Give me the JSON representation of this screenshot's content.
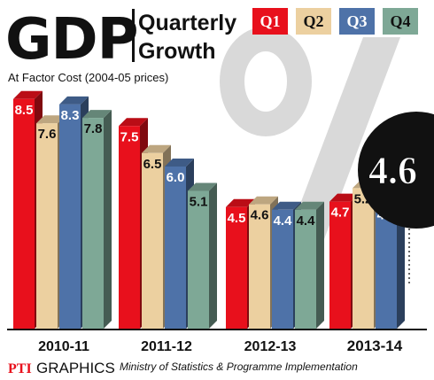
{
  "header": {
    "main_title": "GDP",
    "title_line1": "Quarterly",
    "title_line2": "Growth",
    "subtitle": "At Factor Cost (2004-05 prices)"
  },
  "callout": {
    "value": "4.6"
  },
  "footer": {
    "agency": "PTI",
    "graphics": "GRAPHICS",
    "source": "Ministry of Statistics & Programme Implementation"
  },
  "colors": {
    "Q1": "#e8101c",
    "Q2": "#ecd0a0",
    "Q3": "#4e72a8",
    "Q4": "#7ea896",
    "circle": "#111111",
    "percent_sign": "#d9d9d9"
  },
  "chart_data": {
    "type": "bar",
    "title": "GDP Quarterly Growth",
    "subtitle": "At Factor Cost (2004-05 prices)",
    "categories": [
      "2010-11",
      "2011-12",
      "2012-13",
      "2013-14"
    ],
    "highlight_category": "2013-14",
    "series": [
      {
        "name": "Q1",
        "values": [
          8.5,
          7.5,
          4.5,
          4.7
        ]
      },
      {
        "name": "Q2",
        "values": [
          7.6,
          6.5,
          4.6,
          5.2
        ]
      },
      {
        "name": "Q3",
        "values": [
          8.3,
          6.0,
          4.4,
          4.6
        ]
      },
      {
        "name": "Q4",
        "values": [
          7.8,
          5.1,
          4.4,
          null
        ]
      }
    ],
    "labels": [
      [
        "8.5",
        "7.6",
        "8.3",
        "7.8"
      ],
      [
        "7.5",
        "6.5",
        "6.0",
        "5.1"
      ],
      [
        "4.5",
        "4.6",
        "4.4",
        "4.4"
      ],
      [
        "4.7",
        "5.2",
        "4.6",
        ""
      ]
    ],
    "legend": [
      "Q1",
      "Q2",
      "Q3",
      "Q4"
    ],
    "legend_position": "top-right",
    "grid": false
  }
}
